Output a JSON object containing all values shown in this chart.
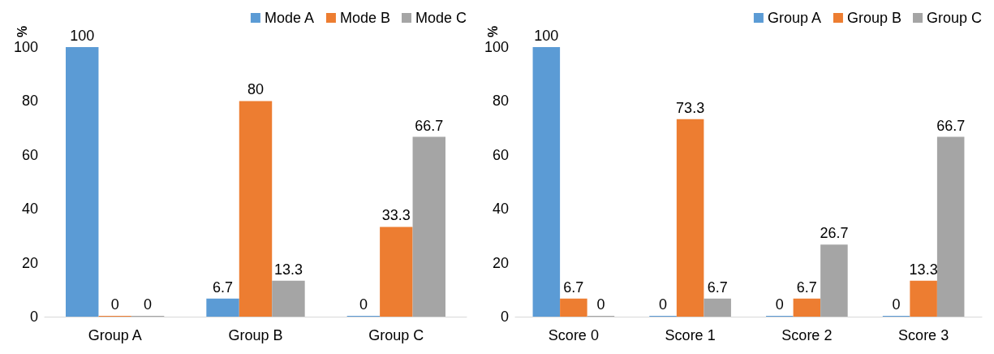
{
  "chart_data": [
    {
      "type": "bar",
      "ylabel": "%",
      "categories": [
        "Group A",
        "Group B",
        "Group C"
      ],
      "series": [
        {
          "name": "Mode A",
          "color": "#5b9bd5",
          "values": [
            100,
            6.7,
            0
          ]
        },
        {
          "name": "Mode B",
          "color": "#ed7d31",
          "values": [
            0,
            80,
            33.3
          ]
        },
        {
          "name": "Mode C",
          "color": "#a5a5a5",
          "values": [
            0,
            13.3,
            66.7
          ]
        }
      ],
      "ylim": [
        0,
        100
      ],
      "yticks": [
        0,
        20,
        40,
        60,
        80,
        100
      ],
      "grid": false,
      "legend": "top right",
      "data_labels": true
    },
    {
      "type": "bar",
      "ylabel": "%",
      "categories": [
        "Score 0",
        "Score 1",
        "Score 2",
        "Score 3"
      ],
      "series": [
        {
          "name": "Group A",
          "color": "#5b9bd5",
          "values": [
            100,
            0,
            0,
            0
          ]
        },
        {
          "name": "Group B",
          "color": "#ed7d31",
          "values": [
            6.7,
            73.3,
            6.7,
            13.3
          ]
        },
        {
          "name": "Group C",
          "color": "#a5a5a5",
          "values": [
            0,
            6.7,
            26.7,
            66.7
          ]
        }
      ],
      "ylim": [
        0,
        100
      ],
      "yticks": [
        0,
        20,
        40,
        60,
        80,
        100
      ],
      "grid": false,
      "legend": "top right",
      "data_labels": true
    }
  ]
}
